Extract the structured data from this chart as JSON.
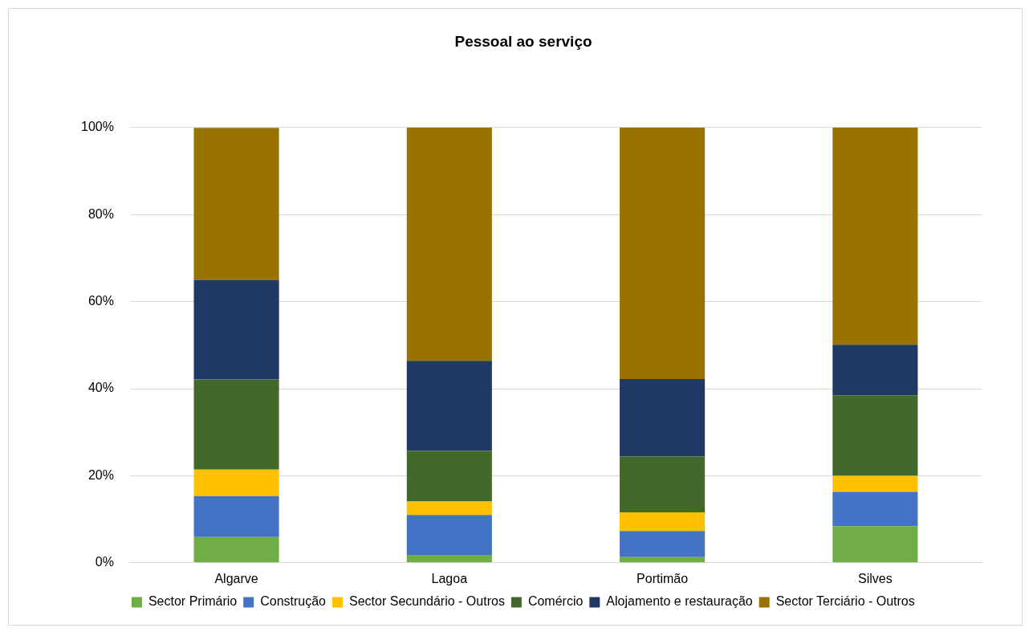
{
  "chart_data": {
    "type": "bar",
    "title": "Pessoal ao serviço",
    "stacked": true,
    "categories": [
      "Algarve",
      "Lagoa",
      "Portimão",
      "Silves"
    ],
    "series": [
      {
        "name": "Sector Primário",
        "color": "#70ad47",
        "values": [
          5.9,
          1.8,
          1.3,
          8.4
        ]
      },
      {
        "name": "Construção",
        "color": "#4472c4",
        "values": [
          9.4,
          9.2,
          6.0,
          7.9
        ]
      },
      {
        "name": "Sector Secundário - Outros",
        "color": "#ffc000",
        "values": [
          6.1,
          3.1,
          4.3,
          3.7
        ]
      },
      {
        "name": "Comércio",
        "color": "#43682b",
        "values": [
          20.7,
          11.6,
          12.8,
          18.5
        ]
      },
      {
        "name": "Alojamento e restauração",
        "color": "#203864",
        "values": [
          22.9,
          20.7,
          17.8,
          11.6
        ]
      },
      {
        "name": "Sector Terciário - Outros",
        "color": "#997300",
        "values": [
          34.9,
          53.6,
          57.8,
          49.9
        ]
      }
    ],
    "ylim": [
      0,
      100
    ],
    "yticks": [
      {
        "value": 0,
        "label": "0%"
      },
      {
        "value": 20,
        "label": "20%"
      },
      {
        "value": 40,
        "label": "40%"
      },
      {
        "value": 60,
        "label": "60%"
      },
      {
        "value": 80,
        "label": "80%"
      },
      {
        "value": 100,
        "label": "100%"
      }
    ],
    "grid": "y",
    "legend": "bottom"
  }
}
